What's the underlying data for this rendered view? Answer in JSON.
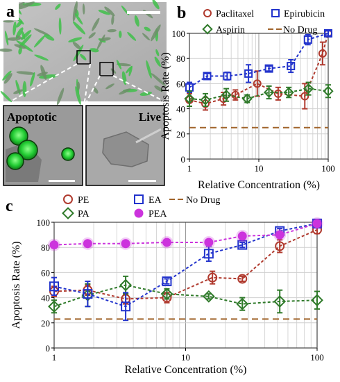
{
  "panel_a": {
    "letter": "a",
    "inset_left_label": "Apoptotic",
    "inset_right_label": "Live",
    "colors": {
      "cell_green": "#2fd03a",
      "background": "#b9b9b9"
    }
  },
  "chart_data": [
    {
      "panel": "b",
      "type": "scatter",
      "xscale": "log",
      "xlim": [
        1,
        100
      ],
      "ylim": [
        0,
        100
      ],
      "xticks": [
        "1",
        "10",
        "100"
      ],
      "yticks": [
        "0",
        "20",
        "40",
        "60",
        "80",
        "100"
      ],
      "xlabel": "Relative Concentration (%)",
      "ylabel": "Apoptosis Rate (%)",
      "legend_placement": "top",
      "grid": true,
      "series": [
        {
          "name": "Paclitaxel",
          "marker": "circle",
          "color": "#b03a2e",
          "x": [
            1,
            1.7,
            3.1,
            4.6,
            9.5,
            19,
            46,
            83,
            100
          ],
          "y": [
            47,
            44,
            48,
            51,
            60,
            52,
            50,
            84,
            100
          ],
          "err": [
            5,
            5,
            5,
            4,
            10,
            5,
            10,
            9,
            2
          ]
        },
        {
          "name": "Epirubicin",
          "marker": "square",
          "color": "#2233cc",
          "x": [
            1,
            1.8,
            3.5,
            7.1,
            14,
            29,
            51,
            100
          ],
          "y": [
            57,
            66,
            66,
            68,
            72,
            74,
            95,
            100
          ],
          "err": [
            4,
            2,
            3,
            7,
            2,
            5,
            4,
            2
          ]
        },
        {
          "name": "Aspirin",
          "marker": "diamond",
          "color": "#2f7a2a",
          "x": [
            1,
            1.7,
            3.4,
            6.8,
            14,
            27,
            52,
            100
          ],
          "y": [
            48,
            47,
            51,
            48,
            53,
            53,
            56,
            54
          ],
          "err": [
            6,
            5,
            5,
            3,
            5,
            4,
            5,
            5
          ]
        },
        {
          "name": "No Drug",
          "style": "dashed",
          "color": "#a0632a",
          "x": [
            1,
            100
          ],
          "y": [
            25,
            25
          ]
        }
      ]
    },
    {
      "panel": "c",
      "type": "scatter",
      "xscale": "log",
      "xlim": [
        1,
        100
      ],
      "ylim": [
        0,
        100
      ],
      "xticks": [
        "1",
        "10",
        "100"
      ],
      "yticks": [
        "0",
        "20",
        "40",
        "60",
        "80",
        "100"
      ],
      "xlabel": "Relative Concentration (%)",
      "ylabel": "Apoptosis Rate (%)",
      "legend_placement": "top",
      "grid": true,
      "series": [
        {
          "name": "PE",
          "marker": "circle",
          "color": "#b03a2e",
          "x": [
            1,
            1.8,
            3.5,
            7.2,
            16,
            27,
            52,
            100
          ],
          "y": [
            45,
            46,
            39,
            40,
            56,
            55,
            81,
            94
          ],
          "err": [
            4,
            4,
            4,
            4,
            5,
            2,
            5,
            3
          ]
        },
        {
          "name": "PA",
          "marker": "diamond",
          "color": "#2f7a2a",
          "x": [
            1,
            1.8,
            3.5,
            7.2,
            15,
            27,
            52,
            100
          ],
          "y": [
            33,
            42,
            50,
            43,
            41,
            35,
            37,
            38
          ],
          "err": [
            5,
            9,
            7,
            4,
            2,
            5,
            9,
            7
          ]
        },
        {
          "name": "EA",
          "marker": "square",
          "color": "#2233cc",
          "x": [
            1,
            1.8,
            3.5,
            7.2,
            15,
            27,
            52,
            100
          ],
          "y": [
            49,
            43,
            33,
            53,
            75,
            82,
            93,
            99
          ],
          "err": [
            7,
            10,
            11,
            2,
            6,
            2,
            2,
            2
          ]
        },
        {
          "name": "PEA",
          "marker": "filled-circle",
          "color": "#cc33dd",
          "x": [
            1,
            1.8,
            3.5,
            7.2,
            15,
            27,
            52,
            100
          ],
          "y": [
            82,
            83,
            83,
            84,
            84,
            89,
            90,
            99
          ],
          "err": [
            2,
            1,
            1,
            1,
            2,
            2,
            1,
            1
          ]
        },
        {
          "name": "No Drug",
          "style": "dashed",
          "color": "#a0632a",
          "x": [
            1,
            100
          ],
          "y": [
            23,
            23
          ]
        }
      ]
    }
  ],
  "panel_letters": {
    "b": "b",
    "c": "c"
  }
}
